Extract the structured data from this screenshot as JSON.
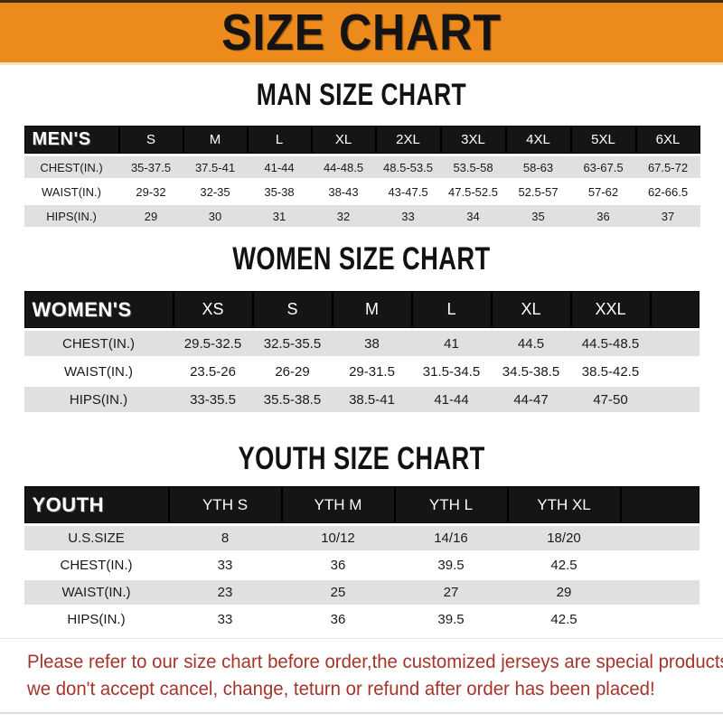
{
  "banner": {
    "title": "SIZE CHART"
  },
  "sections": [
    {
      "title": "MAN SIZE CHART",
      "header_label": "MEN'S",
      "columns": [
        "S",
        "M",
        "L",
        "XL",
        "2XL",
        "3XL",
        "4XL",
        "5XL",
        "6XL"
      ],
      "rows": [
        {
          "label": "CHEST(IN.)",
          "values": [
            "35-37.5",
            "37.5-41",
            "41-44",
            "44-48.5",
            "48.5-53.5",
            "53.5-58",
            "58-63",
            "63-67.5",
            "67.5-72"
          ]
        },
        {
          "label": "WAIST(IN.)",
          "values": [
            "29-32",
            "32-35",
            "35-38",
            "38-43",
            "43-47.5",
            "47.5-52.5",
            "52.5-57",
            "57-62",
            "62-66.5"
          ]
        },
        {
          "label": "HIPS(IN.)",
          "values": [
            "29",
            "30",
            "31",
            "32",
            "33",
            "34",
            "35",
            "36",
            "37"
          ]
        }
      ]
    },
    {
      "title": "WOMEN SIZE CHART",
      "header_label": "WOMEN'S",
      "columns": [
        "XS",
        "S",
        "M",
        "L",
        "XL",
        "XXL"
      ],
      "rows": [
        {
          "label": "CHEST(IN.)",
          "values": [
            "29.5-32.5",
            "32.5-35.5",
            "38",
            "41",
            "44.5",
            "44.5-48.5"
          ]
        },
        {
          "label": "WAIST(IN.)",
          "values": [
            "23.5-26",
            "26-29",
            "29-31.5",
            "31.5-34.5",
            "34.5-38.5",
            "38.5-42.5"
          ]
        },
        {
          "label": "HIPS(IN.)",
          "values": [
            "33-35.5",
            "35.5-38.5",
            "38.5-41",
            "41-44",
            "44-47",
            "47-50"
          ]
        }
      ]
    },
    {
      "title": "YOUTH SIZE CHART",
      "header_label": "YOUTH",
      "columns": [
        "YTH S",
        "YTH M",
        "YTH L",
        "YTH XL"
      ],
      "rows": [
        {
          "label": "U.S.SIZE",
          "values": [
            "8",
            "10/12",
            "14/16",
            "18/20"
          ]
        },
        {
          "label": "CHEST(IN.)",
          "values": [
            "33",
            "36",
            "39.5",
            "42.5"
          ]
        },
        {
          "label": "WAIST(IN.)",
          "values": [
            "23",
            "25",
            "27",
            "29"
          ]
        },
        {
          "label": "HIPS(IN.)",
          "values": [
            "33",
            "36",
            "39.5",
            "42.5"
          ]
        }
      ]
    }
  ],
  "footer": {
    "line1": "Please refer to our size chart before order,the customized jerseys are special products,",
    "line2": "we don't accept cancel, change, teturn or refund after order has been placed!"
  },
  "colors": {
    "banner_orange": "#EC8A1B",
    "header_black": "#151515",
    "stripe_gray": "#E0E0E0",
    "footer_red": "#A5342B"
  }
}
